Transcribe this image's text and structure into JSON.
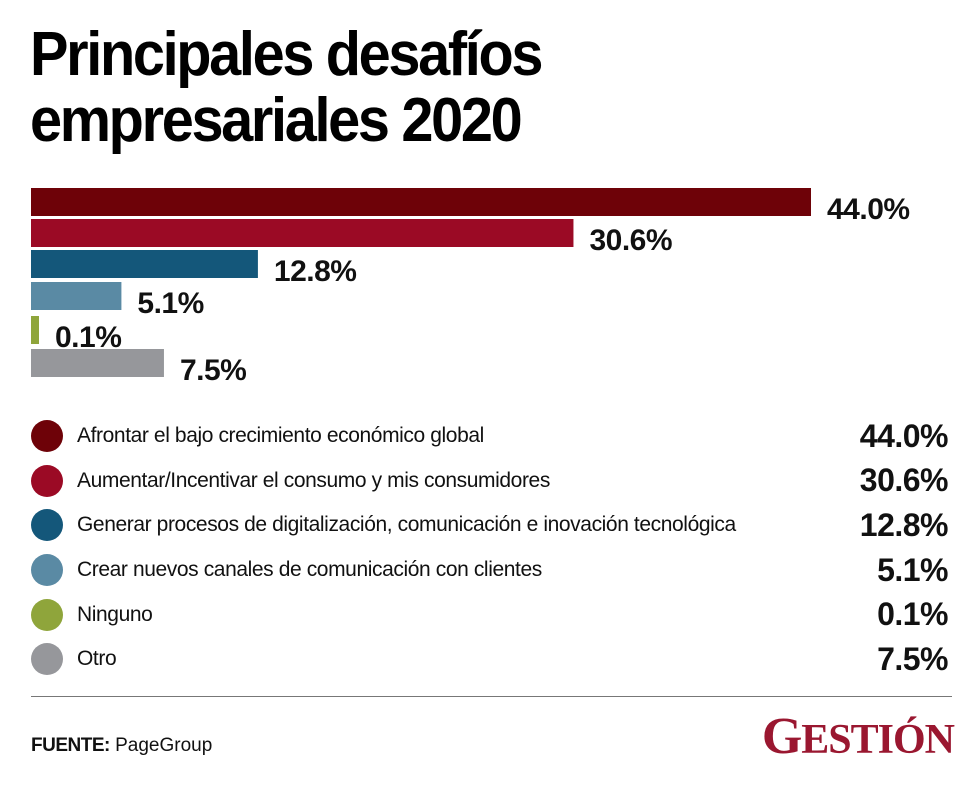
{
  "title": {
    "line1": "Principales desafíos",
    "line2": "empresariales 2020"
  },
  "chart_data": {
    "type": "bar",
    "orientation": "horizontal",
    "title": "Principales desafíos empresariales 2020",
    "xlabel": "",
    "ylabel": "",
    "xlim": [
      0,
      44
    ],
    "grid": false,
    "legend_placement": "bottom",
    "categories": [
      "Afrontar el bajo crecimiento económico global",
      "Aumentar/Incentivar el consumo y mis consumidores",
      "Generar procesos de digitalización, comunicación e inovación tecnológica",
      "Crear nuevos canales de comunicación con clientes",
      "Ninguno",
      "Otro"
    ],
    "values": [
      44.0,
      30.6,
      12.8,
      5.1,
      0.1,
      7.5
    ],
    "labels": [
      "44.0%",
      "30.6%",
      "12.8%",
      "5.1%",
      "0.1%",
      "7.5%"
    ],
    "colors": [
      "#6e0208",
      "#9b0a25",
      "#14577a",
      "#5a8aa4",
      "#8fa53b",
      "#96979b"
    ]
  },
  "legend": {
    "items": [
      {
        "label": "Afrontar el bajo crecimiento económico global",
        "value": "44.0%",
        "color": "#6e0208"
      },
      {
        "label": "Aumentar/Incentivar el consumo y mis consumidores",
        "value": "30.6%",
        "color": "#9b0a25"
      },
      {
        "label": "Generar procesos de digitalización, comunicación e inovación tecnológica",
        "value": "12.8%",
        "color": "#14577a"
      },
      {
        "label": "Crear nuevos canales de comunicación con clientes",
        "value": "5.1%",
        "color": "#5a8aa4"
      },
      {
        "label": "Ninguno",
        "value": "0.1%",
        "color": "#8fa53b"
      },
      {
        "label": "Otro",
        "value": "7.5%",
        "color": "#96979b"
      }
    ]
  },
  "footer": {
    "source_label": "FUENTE:",
    "source_value": "PageGroup",
    "logo_text": "GESTIÓN",
    "logo_color": "#9a1730"
  }
}
